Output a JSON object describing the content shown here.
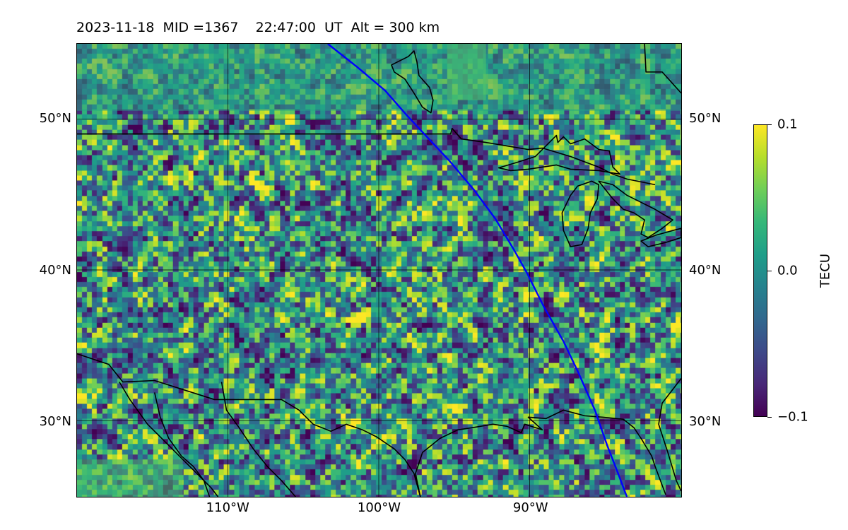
{
  "title": "2023-11-18  MID =1367    22:47:00  UT  Alt = 300 km",
  "map": {
    "lon_range": [
      -120,
      -80
    ],
    "lat_range": [
      25,
      55
    ],
    "lat_ticks": [
      {
        "value": 50,
        "label": "50°N"
      },
      {
        "value": 40,
        "label": "40°N"
      },
      {
        "value": 30,
        "label": "30°N"
      }
    ],
    "lon_ticks": [
      {
        "value": -110,
        "label": "110°W"
      },
      {
        "value": -100,
        "label": "100°W"
      },
      {
        "value": -90,
        "label": "90°W"
      }
    ],
    "grid": true,
    "coastline_color": "#000000",
    "track_color": "#0000ff",
    "satellite_track": [
      [
        -103.4,
        55.0
      ],
      [
        -101.5,
        53.5
      ],
      [
        -99.6,
        51.9
      ],
      [
        -98.2,
        50.3
      ],
      [
        -96.8,
        48.8
      ],
      [
        -95.3,
        47.2
      ],
      [
        -93.7,
        45.3
      ],
      [
        -92.3,
        43.4
      ],
      [
        -91.1,
        41.4
      ],
      [
        -90.2,
        39.8
      ],
      [
        -89.1,
        37.6
      ],
      [
        -87.8,
        35.3
      ],
      [
        -86.8,
        33.2
      ],
      [
        -85.7,
        30.7
      ],
      [
        -84.9,
        28.4
      ],
      [
        -84.2,
        26.6
      ],
      [
        -83.6,
        25.0
      ]
    ]
  },
  "colorbar": {
    "label": "TECU",
    "min": -0.1,
    "max": 0.1,
    "ticks": [
      {
        "value": 0.1,
        "label": "0.1"
      },
      {
        "value": 0.0,
        "label": "0.0"
      },
      {
        "value": -0.1,
        "label": "−0.1"
      }
    ],
    "colormap": "viridis"
  }
}
